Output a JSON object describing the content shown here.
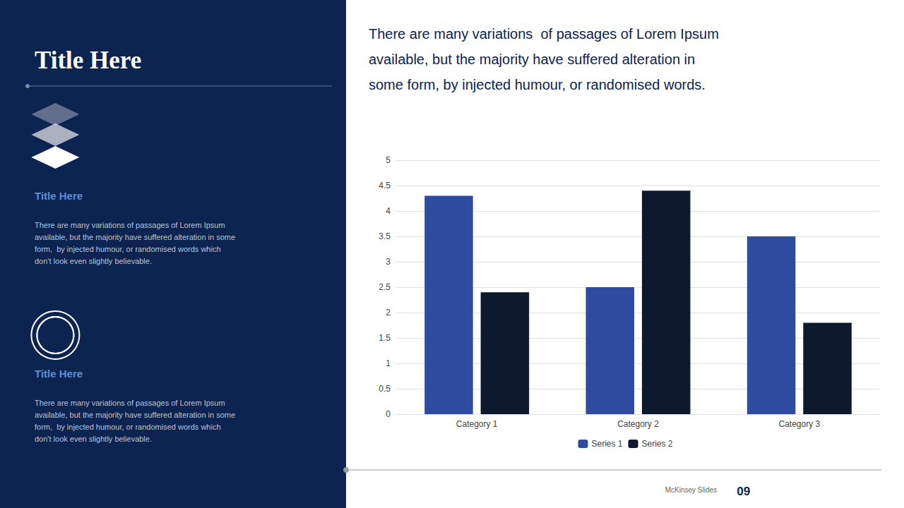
{
  "chart_data": {
    "type": "bar",
    "title": "Title Here",
    "annotations": [
      "Title Here",
      "There are many variations of passages of Lorem Ipsum\navailable, but the majority have suffered alteration in some\nform,  by injected humour, or randomised words which\ndon't look even slightly believable.",
      "Title Here",
      "There are many variations of passages of Lorem Ipsum\navailable, but the majority have suffered alteration in some\nform,  by injected humour, or randomised words which\ndon't look even slightly believable.",
      "There are many variations  of passages of Lorem Ipsum\navailable, but the majority have suffered alteration in\nsome form, by injected humour, or randomised words.",
      "McKinsey Slides",
      "09"
    ],
    "categories": [
      "Category 1",
      "Category 2",
      "Category 3"
    ],
    "series": [
      {
        "name": "Series 1",
        "color": "#2e4ba0",
        "values": [
          4.3,
          2.5,
          3.5
        ]
      },
      {
        "name": "Series 2",
        "color": "#0d1a2e",
        "values": [
          2.4,
          4.4,
          1.8
        ]
      }
    ],
    "ylim": [
      0,
      5
    ],
    "yticks": [
      0,
      0.5,
      1,
      1.5,
      2,
      2.5,
      3,
      3.5,
      4,
      4.5,
      5
    ],
    "grid": true,
    "legend": "bottom"
  }
}
